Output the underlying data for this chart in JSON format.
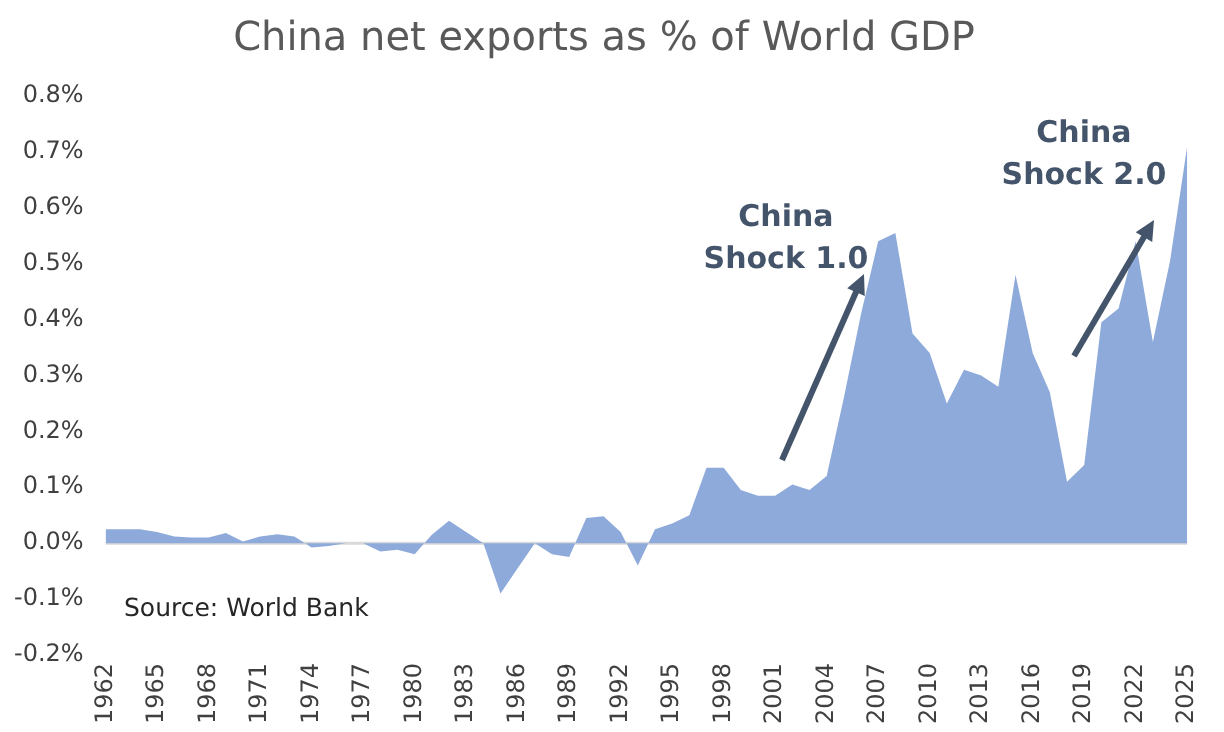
{
  "chart_data": {
    "type": "area",
    "title": "China net exports as % of World GDP",
    "categories": [
      "1962",
      null,
      null,
      "1965",
      null,
      null,
      "1968",
      null,
      null,
      "1971",
      null,
      null,
      "1974",
      null,
      null,
      "1977",
      null,
      null,
      "1980",
      null,
      null,
      "1983",
      null,
      null,
      "1986",
      null,
      null,
      "1989",
      null,
      null,
      "1992",
      null,
      null,
      "1995",
      null,
      null,
      "1998",
      null,
      null,
      "2001",
      null,
      null,
      "2004",
      null,
      null,
      "2007",
      null,
      null,
      "2010",
      null,
      null,
      "2013",
      null,
      null,
      "2016",
      null,
      null,
      "2019",
      null,
      null,
      "2022",
      null,
      null,
      "2025"
    ],
    "series": [
      {
        "color": "#8eaadb",
        "values": [
          0.025,
          0.025,
          0.025,
          0.02,
          0.012,
          0.01,
          0.01,
          0.018,
          0.003,
          0.012,
          0.016,
          0.012,
          -0.008,
          -0.005,
          0.0,
          0.0,
          -0.015,
          -0.012,
          -0.02,
          0.015,
          0.04,
          0.02,
          0.0,
          -0.09,
          -0.045,
          0.0,
          -0.02,
          -0.025,
          0.045,
          0.048,
          0.02,
          -0.04,
          0.025,
          0.035,
          0.05,
          0.135,
          0.135,
          0.095,
          0.085,
          0.085,
          0.105,
          0.095,
          0.12,
          0.26,
          0.41,
          0.54,
          0.555,
          0.375,
          0.34,
          0.25,
          0.31,
          0.3,
          0.28,
          0.48,
          0.34,
          0.27,
          0.11,
          0.14,
          0.395,
          0.42,
          0.54,
          0.36,
          0.505,
          0.71
        ]
      }
    ],
    "ylim": [
      -0.2,
      0.8
    ],
    "yticks": [
      {
        "value": -0.2,
        "label": "-0.2%"
      },
      {
        "value": -0.1,
        "label": "-0.1%"
      },
      {
        "value": 0,
        "label": "0.0%"
      },
      {
        "value": 0.1,
        "label": "0.1%"
      },
      {
        "value": 0.2,
        "label": "0.2%"
      },
      {
        "value": 0.3,
        "label": "0.3%"
      },
      {
        "value": 0.4,
        "label": "0.4%"
      },
      {
        "value": 0.5,
        "label": "0.5%"
      },
      {
        "value": 0.6,
        "label": "0.6%"
      },
      {
        "value": 0.7,
        "label": "0.7%"
      },
      {
        "value": 0.8,
        "label": "0.8%"
      }
    ],
    "annotations": [
      "China Shock 1.0",
      "China Shock 2.0",
      "Source: World Bank"
    ]
  }
}
